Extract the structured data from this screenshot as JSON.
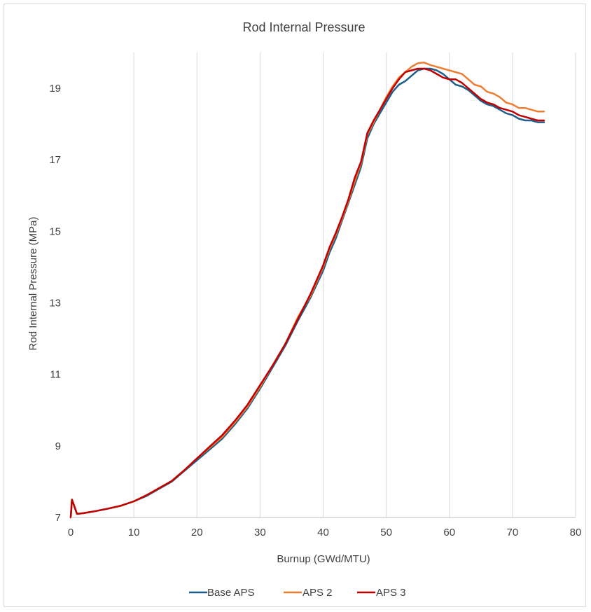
{
  "chart_data": {
    "type": "line",
    "title": "Rod Internal Pressure",
    "xlabel": "Burnup (GWd/MTU)",
    "ylabel": "Rod Internal Pressure (MPa)",
    "xlim": [
      0,
      80
    ],
    "ylim": [
      7,
      20
    ],
    "xticks": [
      0,
      10,
      20,
      30,
      40,
      50,
      60,
      70,
      80
    ],
    "yticks": [
      7,
      9,
      11,
      13,
      15,
      17,
      19
    ],
    "grid": "vertical",
    "legend": "bottom",
    "series": [
      {
        "name": "Base APS",
        "color": "#1f5f8b",
        "points": [
          [
            0,
            7.0
          ],
          [
            0.2,
            7.5
          ],
          [
            1,
            7.1
          ],
          [
            2,
            7.12
          ],
          [
            4,
            7.18
          ],
          [
            6,
            7.25
          ],
          [
            8,
            7.33
          ],
          [
            10,
            7.45
          ],
          [
            12,
            7.6
          ],
          [
            14,
            7.8
          ],
          [
            16,
            8.0
          ],
          [
            18,
            8.3
          ],
          [
            20,
            8.6
          ],
          [
            22,
            8.9
          ],
          [
            24,
            9.2
          ],
          [
            26,
            9.6
          ],
          [
            28,
            10.05
          ],
          [
            30,
            10.6
          ],
          [
            32,
            11.2
          ],
          [
            34,
            11.8
          ],
          [
            36,
            12.5
          ],
          [
            38,
            13.15
          ],
          [
            40,
            13.9
          ],
          [
            41,
            14.4
          ],
          [
            42,
            14.8
          ],
          [
            43,
            15.3
          ],
          [
            44,
            15.8
          ],
          [
            45,
            16.3
          ],
          [
            46,
            16.8
          ],
          [
            47,
            17.6
          ],
          [
            48,
            18.0
          ],
          [
            49,
            18.3
          ],
          [
            50,
            18.6
          ],
          [
            51,
            18.9
          ],
          [
            52,
            19.1
          ],
          [
            53,
            19.2
          ],
          [
            54,
            19.35
          ],
          [
            55,
            19.5
          ],
          [
            56,
            19.55
          ],
          [
            57,
            19.55
          ],
          [
            58,
            19.5
          ],
          [
            59,
            19.4
          ],
          [
            60,
            19.25
          ],
          [
            61,
            19.1
          ],
          [
            62,
            19.05
          ],
          [
            63,
            18.95
          ],
          [
            64,
            18.8
          ],
          [
            65,
            18.65
          ],
          [
            66,
            18.55
          ],
          [
            67,
            18.5
          ],
          [
            68,
            18.4
          ],
          [
            69,
            18.3
          ],
          [
            70,
            18.25
          ],
          [
            71,
            18.15
          ],
          [
            72,
            18.1
          ],
          [
            73,
            18.1
          ],
          [
            74,
            18.05
          ],
          [
            75,
            18.05
          ]
        ]
      },
      {
        "name": "APS 2",
        "color": "#ed7d31",
        "points": [
          [
            0,
            7.0
          ],
          [
            0.2,
            7.5
          ],
          [
            1,
            7.1
          ],
          [
            2,
            7.12
          ],
          [
            4,
            7.18
          ],
          [
            6,
            7.25
          ],
          [
            8,
            7.33
          ],
          [
            10,
            7.45
          ],
          [
            12,
            7.62
          ],
          [
            14,
            7.82
          ],
          [
            16,
            8.02
          ],
          [
            18,
            8.32
          ],
          [
            20,
            8.65
          ],
          [
            22,
            8.95
          ],
          [
            24,
            9.25
          ],
          [
            26,
            9.65
          ],
          [
            28,
            10.1
          ],
          [
            30,
            10.65
          ],
          [
            32,
            11.25
          ],
          [
            34,
            11.85
          ],
          [
            36,
            12.6
          ],
          [
            38,
            13.2
          ],
          [
            40,
            14.0
          ],
          [
            41,
            14.5
          ],
          [
            42,
            14.9
          ],
          [
            43,
            15.35
          ],
          [
            44,
            15.85
          ],
          [
            45,
            16.4
          ],
          [
            46,
            16.9
          ],
          [
            47,
            17.7
          ],
          [
            48,
            18.05
          ],
          [
            49,
            18.4
          ],
          [
            50,
            18.75
          ],
          [
            51,
            19.05
          ],
          [
            52,
            19.3
          ],
          [
            53,
            19.45
          ],
          [
            54,
            19.6
          ],
          [
            55,
            19.7
          ],
          [
            56,
            19.72
          ],
          [
            57,
            19.65
          ],
          [
            58,
            19.6
          ],
          [
            59,
            19.55
          ],
          [
            60,
            19.5
          ],
          [
            61,
            19.45
          ],
          [
            62,
            19.4
          ],
          [
            63,
            19.25
          ],
          [
            64,
            19.1
          ],
          [
            65,
            19.05
          ],
          [
            66,
            18.9
          ],
          [
            67,
            18.85
          ],
          [
            68,
            18.75
          ],
          [
            69,
            18.6
          ],
          [
            70,
            18.55
          ],
          [
            71,
            18.45
          ],
          [
            72,
            18.45
          ],
          [
            73,
            18.4
          ],
          [
            74,
            18.35
          ],
          [
            75,
            18.35
          ]
        ]
      },
      {
        "name": "APS 3",
        "color": "#c00000",
        "points": [
          [
            0,
            7.0
          ],
          [
            0.2,
            7.5
          ],
          [
            1,
            7.1
          ],
          [
            2,
            7.12
          ],
          [
            4,
            7.18
          ],
          [
            6,
            7.25
          ],
          [
            8,
            7.33
          ],
          [
            10,
            7.45
          ],
          [
            12,
            7.62
          ],
          [
            14,
            7.82
          ],
          [
            16,
            8.02
          ],
          [
            18,
            8.32
          ],
          [
            20,
            8.65
          ],
          [
            22,
            8.98
          ],
          [
            24,
            9.3
          ],
          [
            26,
            9.7
          ],
          [
            28,
            10.15
          ],
          [
            30,
            10.7
          ],
          [
            32,
            11.25
          ],
          [
            34,
            11.85
          ],
          [
            36,
            12.55
          ],
          [
            38,
            13.25
          ],
          [
            40,
            14.05
          ],
          [
            41,
            14.55
          ],
          [
            42,
            14.95
          ],
          [
            43,
            15.4
          ],
          [
            44,
            15.9
          ],
          [
            45,
            16.5
          ],
          [
            46,
            16.95
          ],
          [
            47,
            17.75
          ],
          [
            48,
            18.1
          ],
          [
            49,
            18.4
          ],
          [
            50,
            18.7
          ],
          [
            51,
            19.0
          ],
          [
            52,
            19.25
          ],
          [
            53,
            19.45
          ],
          [
            54,
            19.5
          ],
          [
            55,
            19.55
          ],
          [
            56,
            19.55
          ],
          [
            57,
            19.5
          ],
          [
            58,
            19.4
          ],
          [
            59,
            19.3
          ],
          [
            60,
            19.25
          ],
          [
            61,
            19.25
          ],
          [
            62,
            19.15
          ],
          [
            63,
            19.0
          ],
          [
            64,
            18.85
          ],
          [
            65,
            18.7
          ],
          [
            66,
            18.6
          ],
          [
            67,
            18.55
          ],
          [
            68,
            18.45
          ],
          [
            69,
            18.4
          ],
          [
            70,
            18.35
          ],
          [
            71,
            18.25
          ],
          [
            72,
            18.2
          ],
          [
            73,
            18.15
          ],
          [
            74,
            18.1
          ],
          [
            75,
            18.1
          ]
        ]
      }
    ]
  }
}
